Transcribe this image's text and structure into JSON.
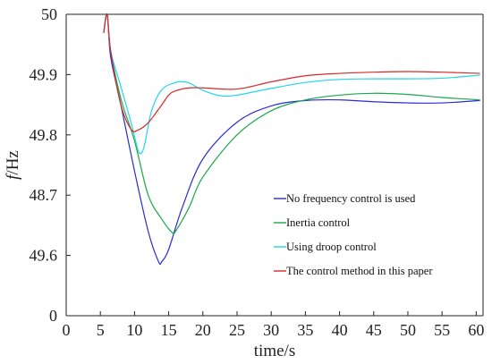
{
  "chart_data": {
    "type": "line",
    "xlabel": "time/s",
    "ylabel_italic": "f",
    "ylabel_rest": "/Hz",
    "xlim": [
      0,
      61
    ],
    "x_ticks": [
      0,
      5,
      10,
      15,
      20,
      25,
      30,
      35,
      40,
      45,
      50,
      55,
      60
    ],
    "y_ticks": [
      {
        "level": 0,
        "label": "0"
      },
      {
        "level": 1,
        "label": "49.6"
      },
      {
        "level": 2,
        "label": "48.7"
      },
      {
        "level": 3,
        "label": "49.8"
      },
      {
        "level": 4,
        "label": "49.9"
      },
      {
        "level": 5,
        "label": "50"
      }
    ],
    "legend_position": "bottom-right",
    "series": [
      {
        "name": "No frequency control is used",
        "color": "#2b2bd6",
        "x": [
          5.5,
          6.0,
          6.5,
          8,
          10,
          12,
          13.5,
          14,
          15,
          17,
          20,
          25,
          30,
          35,
          40,
          45,
          50,
          55,
          60.5
        ],
        "y": [
          49.97,
          50.0,
          49.93,
          49.85,
          49.74,
          49.64,
          49.59,
          49.59,
          49.61,
          49.68,
          49.76,
          49.821,
          49.848,
          49.857,
          49.858,
          49.855,
          49.853,
          49.853,
          49.857
        ]
      },
      {
        "name": "Inertia control",
        "color": "#1aa84a",
        "x": [
          5.5,
          6.0,
          6.5,
          8,
          10,
          12,
          14,
          15.5,
          16,
          18,
          20,
          25,
          30,
          35,
          40,
          45,
          50,
          55,
          60.5
        ],
        "y": [
          49.97,
          50.0,
          49.94,
          49.86,
          49.79,
          49.7,
          49.66,
          49.638,
          49.64,
          49.68,
          49.73,
          49.8,
          49.84,
          49.858,
          49.866,
          49.869,
          49.867,
          49.862,
          49.858
        ]
      },
      {
        "name": "Using droop control",
        "color": "#22d6e6",
        "x": [
          5.5,
          6.0,
          6.5,
          8,
          9.5,
          10.5,
          11,
          11.5,
          12.5,
          14,
          16,
          17,
          18,
          20,
          22.5,
          25,
          30,
          35,
          40,
          45,
          50,
          55,
          60.5
        ],
        "y": [
          49.97,
          50.0,
          49.94,
          49.88,
          49.82,
          49.775,
          49.77,
          49.785,
          49.84,
          49.875,
          49.887,
          49.888,
          49.886,
          49.874,
          49.865,
          49.866,
          49.877,
          49.887,
          49.892,
          49.893,
          49.893,
          49.894,
          49.899
        ]
      },
      {
        "name": "The control method in this paper",
        "color": "#d62a2a",
        "x": [
          5.5,
          6.0,
          6.5,
          8,
          9.5,
          10.5,
          12,
          14,
          15,
          16,
          18,
          20,
          25,
          30,
          35,
          40,
          45,
          50,
          55,
          60.5
        ],
        "y": [
          49.97,
          50.0,
          49.94,
          49.85,
          49.809,
          49.808,
          49.82,
          49.85,
          49.866,
          49.873,
          49.878,
          49.878,
          49.876,
          49.888,
          49.898,
          49.902,
          49.904,
          49.905,
          49.904,
          49.902
        ]
      }
    ]
  }
}
